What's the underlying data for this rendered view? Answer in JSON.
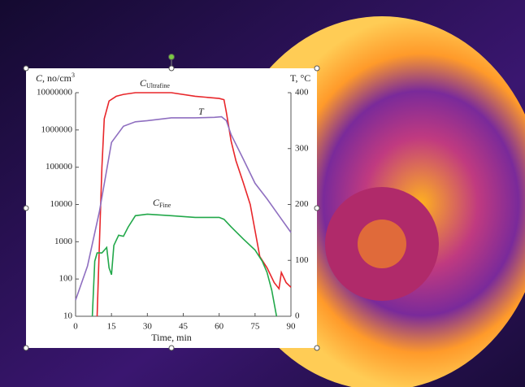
{
  "chart_data": {
    "type": "line",
    "log_y": true,
    "ylabel": "C, no/cm3",
    "y2label": "T, °C",
    "xlabel": "Time, min",
    "xlim": [
      0,
      90
    ],
    "xticks": [
      0,
      15,
      30,
      45,
      60,
      75,
      90
    ],
    "ylim": [
      10,
      10000000
    ],
    "yticks": [
      10,
      100,
      1000,
      10000,
      100000,
      1000000,
      10000000
    ],
    "y2lim": [
      0,
      400
    ],
    "y2ticks": [
      0,
      100,
      200,
      300,
      400
    ],
    "series": [
      {
        "name": "CUltrafine",
        "color": "#e8262a",
        "x": [
          9,
          10,
          11,
          12,
          14,
          17,
          20,
          25,
          30,
          40,
          50,
          60,
          62,
          63,
          65,
          67,
          70,
          73,
          75,
          77,
          80,
          83,
          85,
          86,
          88,
          90
        ],
        "values": [
          10,
          1000,
          100000,
          2000000,
          6000000,
          8000000,
          9000000,
          10000000,
          10000000,
          10000000,
          8000000,
          7000000,
          6500000,
          3000000,
          500000,
          150000,
          40000,
          10000,
          2000,
          400,
          200,
          80,
          55,
          150,
          80,
          60
        ]
      },
      {
        "name": "T",
        "color": "#8f6fc0",
        "axis": "y2",
        "x": [
          0,
          5,
          10,
          15,
          20,
          25,
          30,
          40,
          50,
          58,
          61,
          63,
          65,
          70,
          75,
          80,
          85,
          90
        ],
        "values": [
          29,
          90,
          188,
          311,
          340,
          348,
          350,
          355,
          355,
          356,
          357,
          350,
          325,
          282,
          238,
          210,
          180,
          150
        ]
      },
      {
        "name": "CFine",
        "color": "#22a84a",
        "x": [
          7,
          8,
          9,
          11,
          13,
          14,
          15,
          16,
          18,
          20,
          22,
          25,
          30,
          40,
          50,
          60,
          62,
          65,
          70,
          75,
          78,
          80,
          82,
          84
        ],
        "values": [
          10,
          300,
          500,
          500,
          700,
          200,
          130,
          800,
          1500,
          1400,
          2500,
          5000,
          5500,
          5000,
          4500,
          4500,
          4000,
          2500,
          1200,
          600,
          300,
          150,
          50,
          10
        ]
      }
    ]
  }
}
